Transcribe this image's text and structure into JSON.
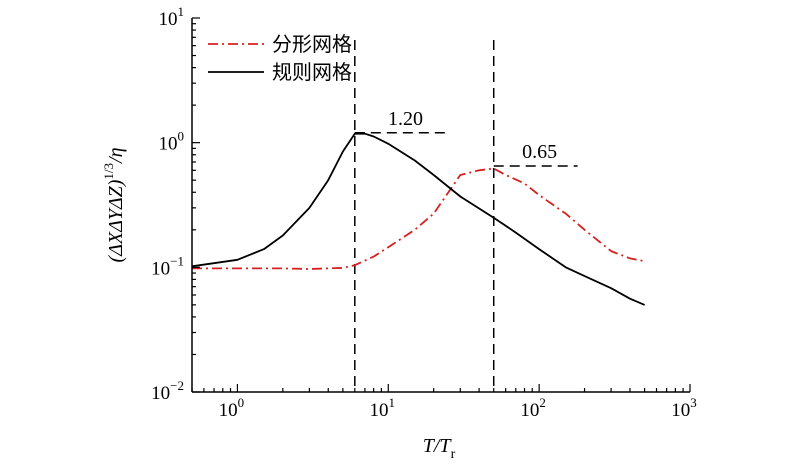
{
  "chart_data": {
    "type": "line",
    "x_scale": "log",
    "y_scale": "log",
    "xlim": [
      0.5,
      1000
    ],
    "ylim": [
      0.01,
      10
    ],
    "x_ticks": [
      {
        "value": 1,
        "base": "10",
        "exp": "0"
      },
      {
        "value": 10,
        "base": "10",
        "exp": "1"
      },
      {
        "value": 100,
        "base": "10",
        "exp": "2"
      },
      {
        "value": 1000,
        "base": "10",
        "exp": "3"
      }
    ],
    "y_ticks": [
      {
        "value": 0.01,
        "base": "10",
        "exp": "−2"
      },
      {
        "value": 0.1,
        "base": "10",
        "exp": "−1"
      },
      {
        "value": 1,
        "base": "10",
        "exp": "0"
      },
      {
        "value": 10,
        "base": "10",
        "exp": "1"
      }
    ],
    "xlabel": {
      "main": "T/T",
      "sub": "r"
    },
    "ylabel": {
      "main": "(ΔXΔYΔZ)",
      "sup": "1/3",
      "tail": "/η"
    },
    "legend_position": "top-left",
    "series": [
      {
        "name": "分形网格",
        "color": "#d62020",
        "dash": "dashdot",
        "x": [
          0.5,
          1,
          2,
          3,
          5,
          6,
          8,
          10,
          15,
          20,
          30,
          40,
          50,
          60,
          80,
          100,
          150,
          200,
          300,
          400,
          500
        ],
        "y": [
          0.098,
          0.098,
          0.098,
          0.097,
          0.099,
          0.104,
          0.122,
          0.145,
          0.2,
          0.27,
          0.55,
          0.6,
          0.62,
          0.55,
          0.47,
          0.38,
          0.27,
          0.2,
          0.135,
          0.118,
          0.112
        ]
      },
      {
        "name": "规则网格",
        "color": "#000000",
        "dash": "solid",
        "x": [
          0.5,
          1,
          1.5,
          2,
          3,
          4,
          5,
          6,
          7,
          8,
          10,
          15,
          20,
          30,
          50,
          70,
          100,
          150,
          200,
          300,
          400,
          500
        ],
        "y": [
          0.102,
          0.115,
          0.14,
          0.18,
          0.3,
          0.5,
          0.85,
          1.18,
          1.18,
          1.12,
          0.98,
          0.72,
          0.55,
          0.37,
          0.25,
          0.19,
          0.14,
          0.1,
          0.085,
          0.068,
          0.056,
          0.05
        ]
      }
    ],
    "reference_lines": {
      "vertical_x": [
        6,
        50
      ]
    },
    "annotations": [
      {
        "text": "1.20",
        "x": 6,
        "y": 1.2,
        "line_to_x": 25
      },
      {
        "text": "0.65",
        "x": 50,
        "y": 0.65,
        "line_to_x": 180
      }
    ]
  }
}
